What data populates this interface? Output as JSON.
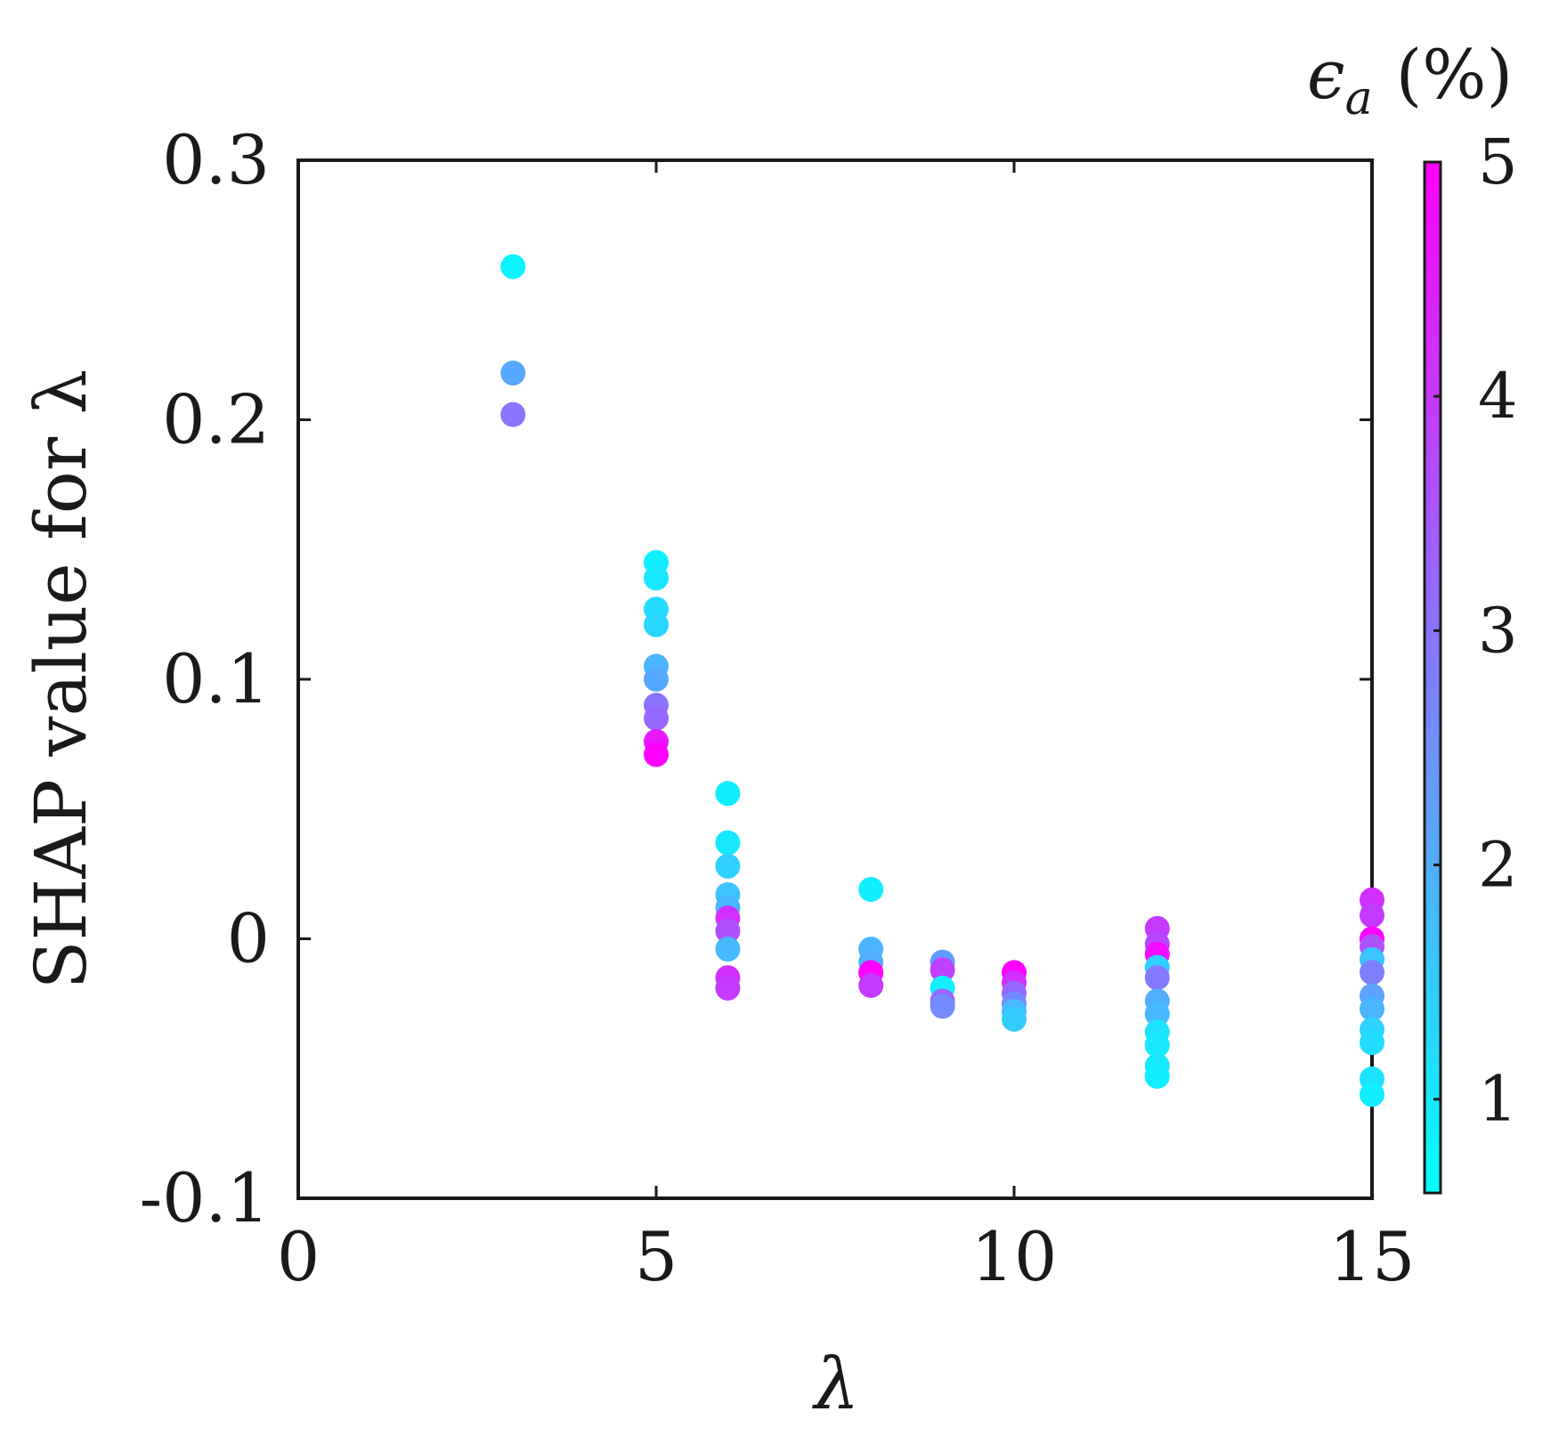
{
  "chart_data": {
    "type": "scatter",
    "title": "",
    "xlabel": "λ",
    "ylabel": "SHAP value for λ",
    "xlim": [
      0,
      15
    ],
    "ylim": [
      -0.1,
      0.3
    ],
    "xticks": [
      0,
      5,
      10,
      15
    ],
    "xtick_labels": [
      "0",
      "5",
      "10",
      "15"
    ],
    "yticks": [
      0.3,
      0.2,
      0.1,
      0,
      -0.1
    ],
    "ytick_labels": [
      "0.3",
      "0.2",
      "0.1",
      "0",
      "-0.1"
    ],
    "grid": false,
    "legend": "none",
    "colorbar": {
      "label_main": "ϵ",
      "label_sub": "a",
      "label_unit": "(%)",
      "range": [
        0.6,
        5
      ],
      "ticks": [
        1,
        2,
        3,
        4,
        5
      ],
      "tick_labels": [
        "1",
        "2",
        "3",
        "4",
        "5"
      ],
      "colormap": "cool",
      "color_low": "#00ffff",
      "color_high": "#ff00ff"
    },
    "points": [
      {
        "x": 3,
        "y": 0.259,
        "c": 0.8
      },
      {
        "x": 3,
        "y": 0.218,
        "c": 2.1
      },
      {
        "x": 3,
        "y": 0.202,
        "c": 3.0
      },
      {
        "x": 5,
        "y": 0.145,
        "c": 0.9
      },
      {
        "x": 5,
        "y": 0.139,
        "c": 1.0
      },
      {
        "x": 5,
        "y": 0.127,
        "c": 1.2
      },
      {
        "x": 5,
        "y": 0.121,
        "c": 1.3
      },
      {
        "x": 5,
        "y": 0.105,
        "c": 1.9
      },
      {
        "x": 5,
        "y": 0.1,
        "c": 2.1
      },
      {
        "x": 5,
        "y": 0.09,
        "c": 3.0
      },
      {
        "x": 5,
        "y": 0.085,
        "c": 3.2
      },
      {
        "x": 5,
        "y": 0.076,
        "c": 4.6
      },
      {
        "x": 5,
        "y": 0.071,
        "c": 5.0
      },
      {
        "x": 6,
        "y": 0.056,
        "c": 0.9
      },
      {
        "x": 6,
        "y": 0.037,
        "c": 1.0
      },
      {
        "x": 6,
        "y": 0.028,
        "c": 1.4
      },
      {
        "x": 6,
        "y": 0.017,
        "c": 1.6
      },
      {
        "x": 6,
        "y": 0.012,
        "c": 1.8
      },
      {
        "x": 6,
        "y": 0.008,
        "c": 4.2
      },
      {
        "x": 6,
        "y": 0.003,
        "c": 3.6
      },
      {
        "x": 6,
        "y": -0.004,
        "c": 1.8
      },
      {
        "x": 6,
        "y": -0.015,
        "c": 4.2
      },
      {
        "x": 6,
        "y": -0.019,
        "c": 4.0
      },
      {
        "x": 8,
        "y": 0.019,
        "c": 0.9
      },
      {
        "x": 8,
        "y": -0.004,
        "c": 1.9
      },
      {
        "x": 8,
        "y": -0.009,
        "c": 2.0
      },
      {
        "x": 8,
        "y": -0.013,
        "c": 5.0
      },
      {
        "x": 8,
        "y": -0.018,
        "c": 4.0
      },
      {
        "x": 9,
        "y": -0.009,
        "c": 2.3
      },
      {
        "x": 9,
        "y": -0.012,
        "c": 3.9
      },
      {
        "x": 9,
        "y": -0.019,
        "c": 0.9
      },
      {
        "x": 9,
        "y": -0.024,
        "c": 3.3
      },
      {
        "x": 9,
        "y": -0.026,
        "c": 2.6
      },
      {
        "x": 10,
        "y": -0.013,
        "c": 5.0
      },
      {
        "x": 10,
        "y": -0.017,
        "c": 4.2
      },
      {
        "x": 10,
        "y": -0.021,
        "c": 3.2
      },
      {
        "x": 10,
        "y": -0.025,
        "c": 2.6
      },
      {
        "x": 10,
        "y": -0.028,
        "c": 1.8
      },
      {
        "x": 10,
        "y": -0.031,
        "c": 1.5
      },
      {
        "x": 12,
        "y": 0.004,
        "c": 4.0
      },
      {
        "x": 12,
        "y": -0.002,
        "c": 3.8
      },
      {
        "x": 12,
        "y": -0.006,
        "c": 4.8
      },
      {
        "x": 12,
        "y": -0.011,
        "c": 1.4
      },
      {
        "x": 12,
        "y": -0.015,
        "c": 2.9
      },
      {
        "x": 12,
        "y": -0.024,
        "c": 2.0
      },
      {
        "x": 12,
        "y": -0.029,
        "c": 1.8
      },
      {
        "x": 12,
        "y": -0.036,
        "c": 1.1
      },
      {
        "x": 12,
        "y": -0.041,
        "c": 1.0
      },
      {
        "x": 12,
        "y": -0.049,
        "c": 1.0
      },
      {
        "x": 12,
        "y": -0.053,
        "c": 0.9
      },
      {
        "x": 15,
        "y": 0.015,
        "c": 4.2
      },
      {
        "x": 15,
        "y": 0.009,
        "c": 4.0
      },
      {
        "x": 15,
        "y": 0.0,
        "c": 5.0
      },
      {
        "x": 15,
        "y": -0.003,
        "c": 3.6
      },
      {
        "x": 15,
        "y": -0.008,
        "c": 1.6
      },
      {
        "x": 15,
        "y": -0.013,
        "c": 2.8
      },
      {
        "x": 15,
        "y": -0.022,
        "c": 2.2
      },
      {
        "x": 15,
        "y": -0.027,
        "c": 1.9
      },
      {
        "x": 15,
        "y": -0.035,
        "c": 1.4
      },
      {
        "x": 15,
        "y": -0.04,
        "c": 1.2
      },
      {
        "x": 15,
        "y": -0.054,
        "c": 1.1
      },
      {
        "x": 15,
        "y": -0.06,
        "c": 0.9
      }
    ]
  }
}
